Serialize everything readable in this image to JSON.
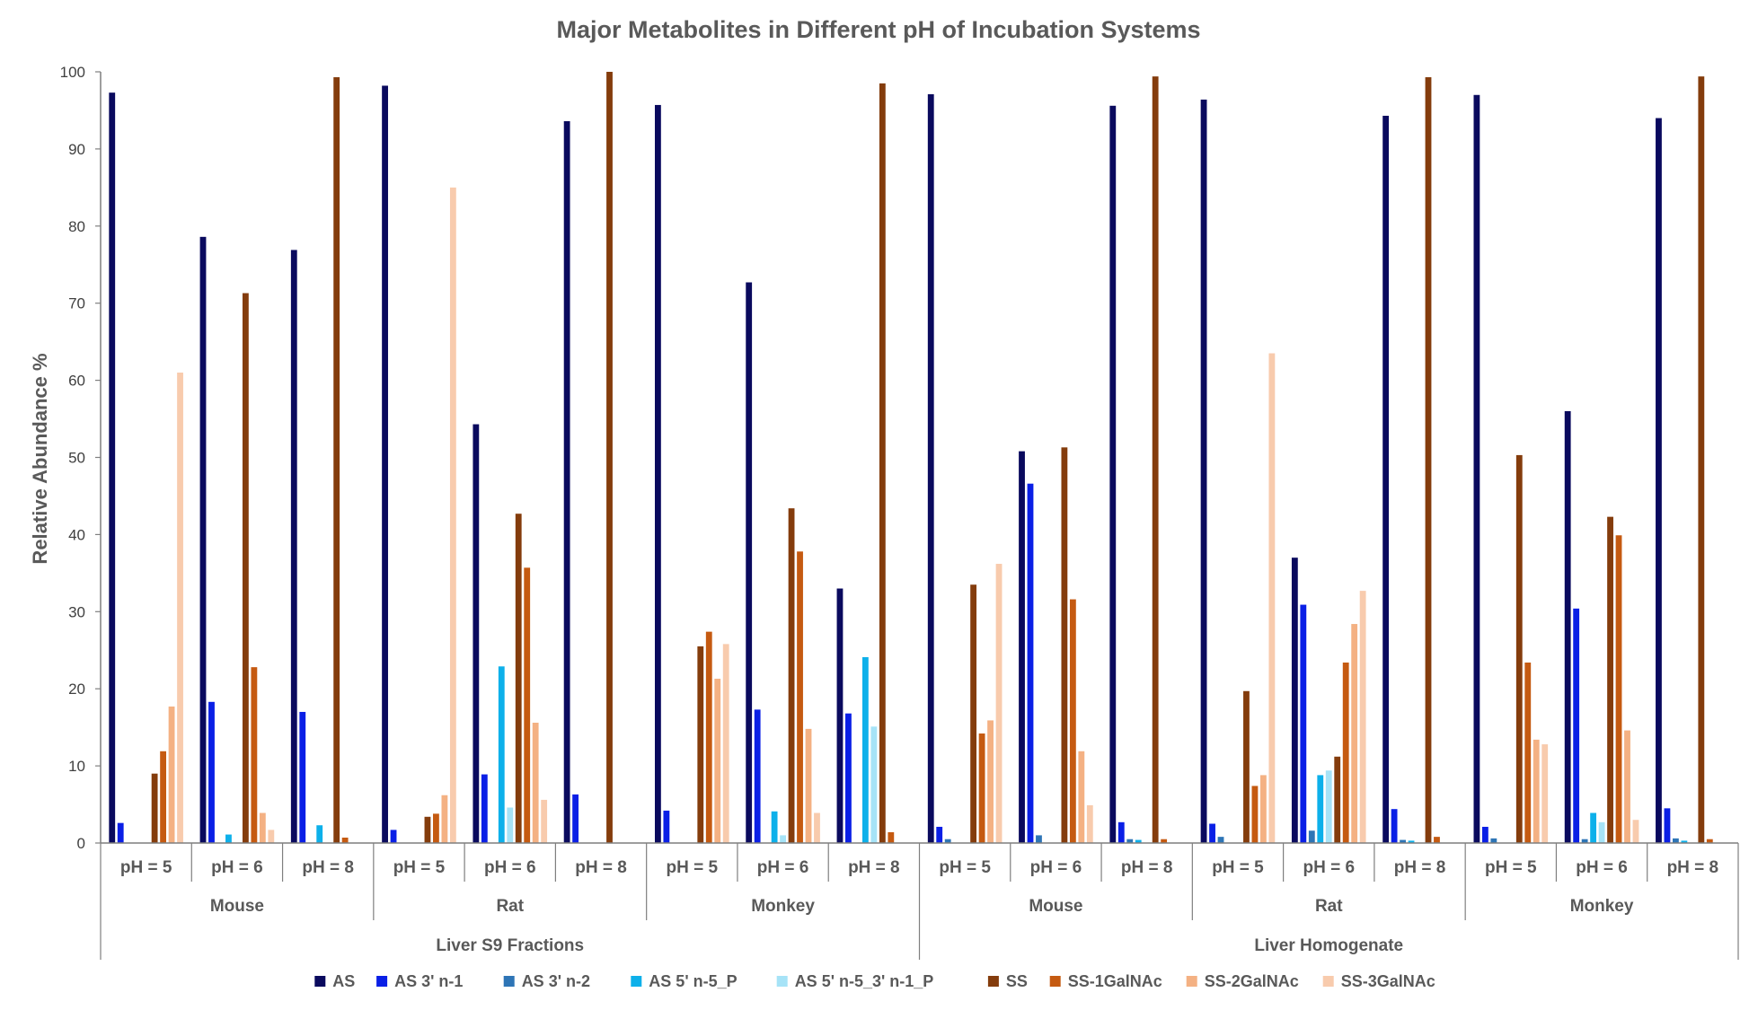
{
  "chart_data": {
    "type": "bar",
    "title": "Major Metabolites in Different pH of Incubation Systems",
    "xlabel": "",
    "ylabel": "Relative Abundance %",
    "ylim": [
      0,
      100
    ],
    "yticks": [
      0,
      10,
      20,
      30,
      40,
      50,
      60,
      70,
      80,
      90,
      100
    ],
    "grid": false,
    "legend_position": "bottom",
    "x_groups": {
      "systems": [
        "Liver S9 Fractions",
        "Liver Homogenate"
      ],
      "species": [
        "Mouse",
        "Rat",
        "Monkey",
        "Mouse",
        "Rat",
        "Monkey"
      ],
      "ph_labels": [
        "pH = 5",
        "pH = 6",
        "pH = 8",
        "pH = 5",
        "pH = 6",
        "pH = 8",
        "pH = 5",
        "pH = 6",
        "pH = 8",
        "pH = 5",
        "pH = 6",
        "pH = 8",
        "pH = 5",
        "pH = 6",
        "pH = 8",
        "pH = 5",
        "pH = 6",
        "pH = 8"
      ]
    },
    "series": [
      {
        "name": "AS",
        "color": "#0a0a5e",
        "values": [
          97.3,
          78.6,
          76.9,
          98.2,
          54.3,
          93.6,
          95.7,
          72.7,
          33.0,
          97.1,
          50.8,
          95.6,
          96.4,
          37.0,
          94.3,
          97.0,
          56.0,
          94.0
        ]
      },
      {
        "name": "AS 3' n-1",
        "color": "#0a1fe6",
        "values": [
          2.6,
          18.3,
          17.0,
          1.7,
          8.9,
          6.3,
          4.2,
          17.3,
          16.8,
          2.1,
          46.6,
          2.7,
          2.5,
          30.9,
          4.4,
          2.1,
          30.4,
          4.5
        ]
      },
      {
        "name": "AS 3' n-2",
        "color": "#2e75b6",
        "values": [
          0,
          0,
          0,
          0,
          0,
          0,
          0,
          0,
          0,
          0.5,
          1.0,
          0.5,
          0.8,
          1.6,
          0.4,
          0.6,
          0.5,
          0.6
        ]
      },
      {
        "name": "AS 5' n-5_P",
        "color": "#0db0ea",
        "values": [
          0,
          1.1,
          2.3,
          0,
          22.9,
          0,
          0,
          4.1,
          24.1,
          0,
          0,
          0.4,
          0,
          8.8,
          0.3,
          0,
          3.9,
          0.3
        ]
      },
      {
        "name": "AS 5' n-5_3' n-1_P",
        "color": "#a6e3f7",
        "values": [
          0,
          0,
          0,
          0,
          4.6,
          0,
          0,
          1.0,
          15.1,
          0,
          0,
          0,
          0,
          9.4,
          0,
          0,
          2.7,
          0
        ]
      },
      {
        "name": "SS",
        "color": "#843c0c",
        "values": [
          9.0,
          71.3,
          99.3,
          3.4,
          42.7,
          100,
          25.5,
          43.4,
          98.5,
          33.5,
          51.3,
          99.4,
          19.7,
          11.2,
          99.3,
          50.3,
          42.3,
          99.4
        ]
      },
      {
        "name": "SS-1GalNAc",
        "color": "#c55a11",
        "values": [
          11.9,
          22.8,
          0.7,
          3.8,
          35.7,
          0,
          27.4,
          37.8,
          1.4,
          14.2,
          31.6,
          0.5,
          7.4,
          23.4,
          0.8,
          23.4,
          39.9,
          0.5
        ]
      },
      {
        "name": "SS-2GalNAc",
        "color": "#f4b183",
        "values": [
          17.7,
          3.9,
          0,
          6.2,
          15.6,
          0,
          21.3,
          14.8,
          0,
          15.9,
          11.9,
          0,
          8.8,
          28.4,
          0,
          13.4,
          14.6,
          0
        ]
      },
      {
        "name": "SS-3GalNAc",
        "color": "#f8cbad",
        "values": [
          61.0,
          1.7,
          0,
          85.0,
          5.6,
          0,
          25.8,
          3.9,
          0,
          36.2,
          4.9,
          0,
          63.5,
          32.7,
          0,
          12.8,
          3.0,
          0
        ]
      }
    ]
  }
}
